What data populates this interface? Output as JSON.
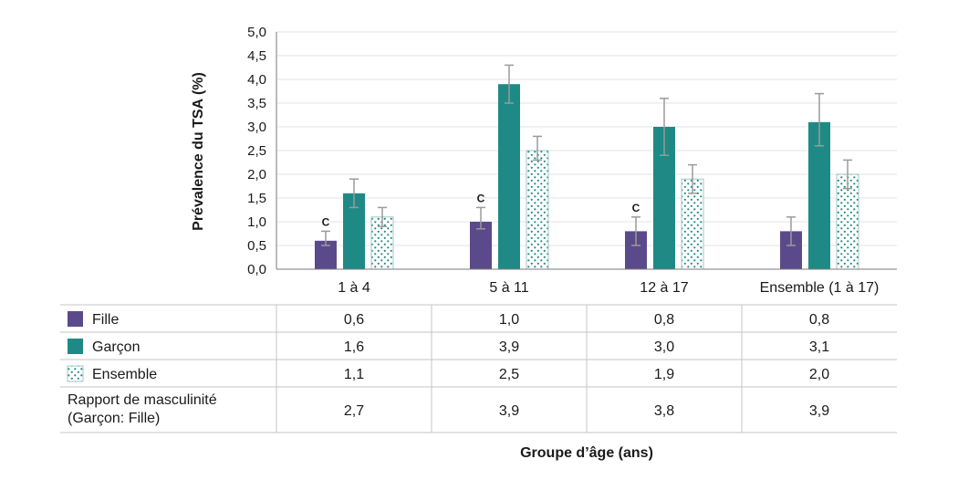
{
  "chart_data": {
    "type": "bar",
    "ylabel": "Prévalence du TSA (%)",
    "xlabel": "Groupe d’âge (ans)",
    "ylim": [
      0,
      5
    ],
    "yticks": [
      "0,0",
      "0,5",
      "1,0",
      "1,5",
      "2,0",
      "2,5",
      "3,0",
      "3,5",
      "4,0",
      "4,5",
      "5,0"
    ],
    "grid": true,
    "categories": [
      "1 à 4",
      "5 à 11",
      "12 à 17",
      "Ensemble (1 à 17)"
    ],
    "series": [
      {
        "name": "Fille",
        "color": "#5b4a8b",
        "pattern": "solid",
        "values": [
          0.6,
          1.0,
          0.8,
          0.8
        ],
        "value_labels": [
          "0,6",
          "1,0",
          "0,8",
          "0,8"
        ],
        "error_low": [
          0.5,
          0.85,
          0.5,
          0.5
        ],
        "error_high": [
          0.8,
          1.3,
          1.1,
          1.1
        ],
        "flags": [
          "C",
          "C",
          "C",
          ""
        ]
      },
      {
        "name": "Garçon",
        "color": "#1f8a85",
        "pattern": "solid",
        "values": [
          1.6,
          3.9,
          3.0,
          3.1
        ],
        "value_labels": [
          "1,6",
          "3,9",
          "3,0",
          "3,1"
        ],
        "error_low": [
          1.3,
          3.5,
          2.4,
          2.6
        ],
        "error_high": [
          1.9,
          4.3,
          3.6,
          3.7
        ],
        "flags": [
          "",
          "",
          "",
          ""
        ]
      },
      {
        "name": "Ensemble",
        "color": "#1f8a85",
        "pattern": "dots",
        "values": [
          1.1,
          2.5,
          1.9,
          2.0
        ],
        "value_labels": [
          "1,1",
          "2,5",
          "1,9",
          "2,0"
        ],
        "error_low": [
          0.9,
          2.3,
          1.6,
          1.7
        ],
        "error_high": [
          1.3,
          2.8,
          2.2,
          2.3
        ],
        "flags": [
          "",
          "",
          "",
          ""
        ]
      }
    ],
    "table_extra_row": {
      "label_lines": [
        "Rapport de masculinité",
        "(Garçon: Fille)"
      ],
      "values": [
        "2,7",
        "3,9",
        "3,8",
        "3,9"
      ]
    },
    "error_bar_color": "#9a9a9a"
  }
}
